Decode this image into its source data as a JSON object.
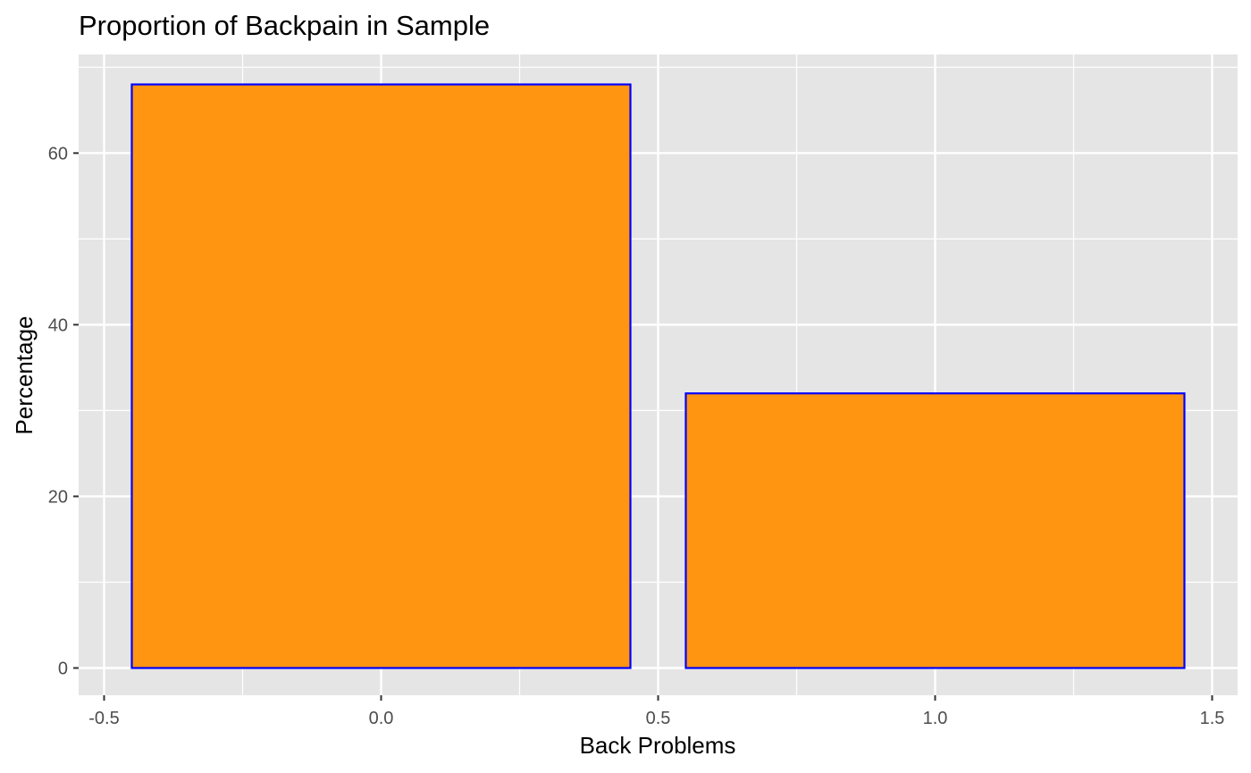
{
  "chart_data": {
    "type": "bar",
    "title": "Proportion of Backpain in Sample",
    "xlabel": "Back Problems",
    "ylabel": "Percentage",
    "x": [
      0,
      1
    ],
    "values": [
      68,
      32
    ],
    "bar_width": 0.9,
    "xlim": [
      -0.5,
      1.5
    ],
    "ylim": [
      0,
      68
    ],
    "x_ticks": [
      -0.5,
      0.0,
      0.5,
      1.0,
      1.5
    ],
    "x_tick_labels": [
      "-0.5",
      "0.0",
      "0.5",
      "1.0",
      "1.5"
    ],
    "y_ticks": [
      0,
      20,
      40,
      60
    ],
    "y_tick_labels": [
      "0",
      "20",
      "40",
      "60"
    ],
    "grid": true,
    "colors": {
      "bar_fill": "#ff9510",
      "bar_outline": "#0000ff",
      "panel_background": "#e5e5e5",
      "grid_line": "#ffffff",
      "tick_text": "#4d4d4d",
      "tick_mark": "#333333"
    }
  }
}
